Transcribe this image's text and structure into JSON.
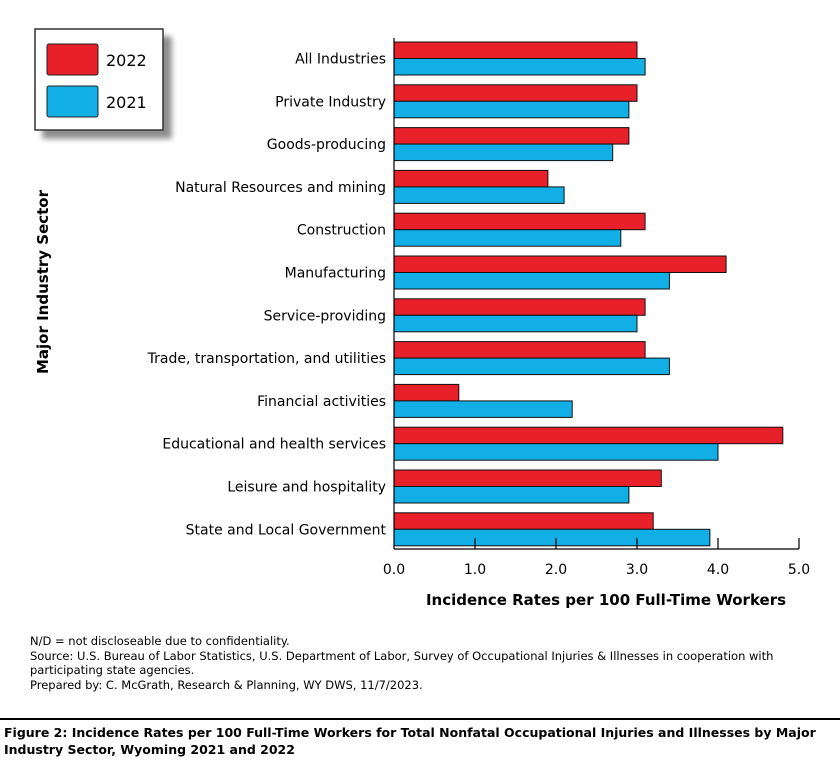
{
  "chart_data": {
    "type": "bar",
    "orientation": "horizontal",
    "categories": [
      "All Industries",
      "Private Industry",
      "Goods-producing",
      "Natural Resources and mining",
      "Construction",
      "Manufacturing",
      "Service-providing",
      "Trade, transportation, and utilities",
      "Financial activities",
      "Educational and health services",
      "Leisure and hospitality",
      "State and Local Government"
    ],
    "series": [
      {
        "name": "2022",
        "color": "#e8202a",
        "values": [
          3.0,
          3.0,
          2.9,
          1.9,
          3.1,
          4.1,
          3.1,
          3.1,
          0.8,
          4.8,
          3.3,
          3.2
        ]
      },
      {
        "name": "2021",
        "color": "#12aee6",
        "values": [
          3.1,
          2.9,
          2.7,
          2.1,
          2.8,
          3.4,
          3.0,
          3.4,
          2.2,
          4.0,
          2.9,
          3.9
        ]
      }
    ],
    "xlabel": "Incidence Rates per 100 Full-Time Workers",
    "ylabel": "Major Industry Sector",
    "xlim": [
      0,
      5
    ],
    "xticks": [
      "0.0",
      "1.0",
      "2.0",
      "3.0",
      "4.0",
      "5.0"
    ],
    "legend": {
      "position": "top-left",
      "entries": [
        "2022",
        "2021"
      ]
    }
  },
  "notes": [
    "N/D = not discloseable due to confidentiality.",
    "Source: U.S. Bureau of Labor Statistics, U.S. Department of Labor, Survey of Occupational Injuries & Illnesses in cooperation with participating state agencies.",
    "Prepared by: C. McGrath, Research & Planning, WY DWS, 11/7/2023."
  ],
  "caption": "Figure 2:  Incidence Rates per 100 Full-Time Workers for Total Nonfatal Occupational Injuries and Illnesses by Major Industry Sector, Wyoming 2021 and 2022"
}
